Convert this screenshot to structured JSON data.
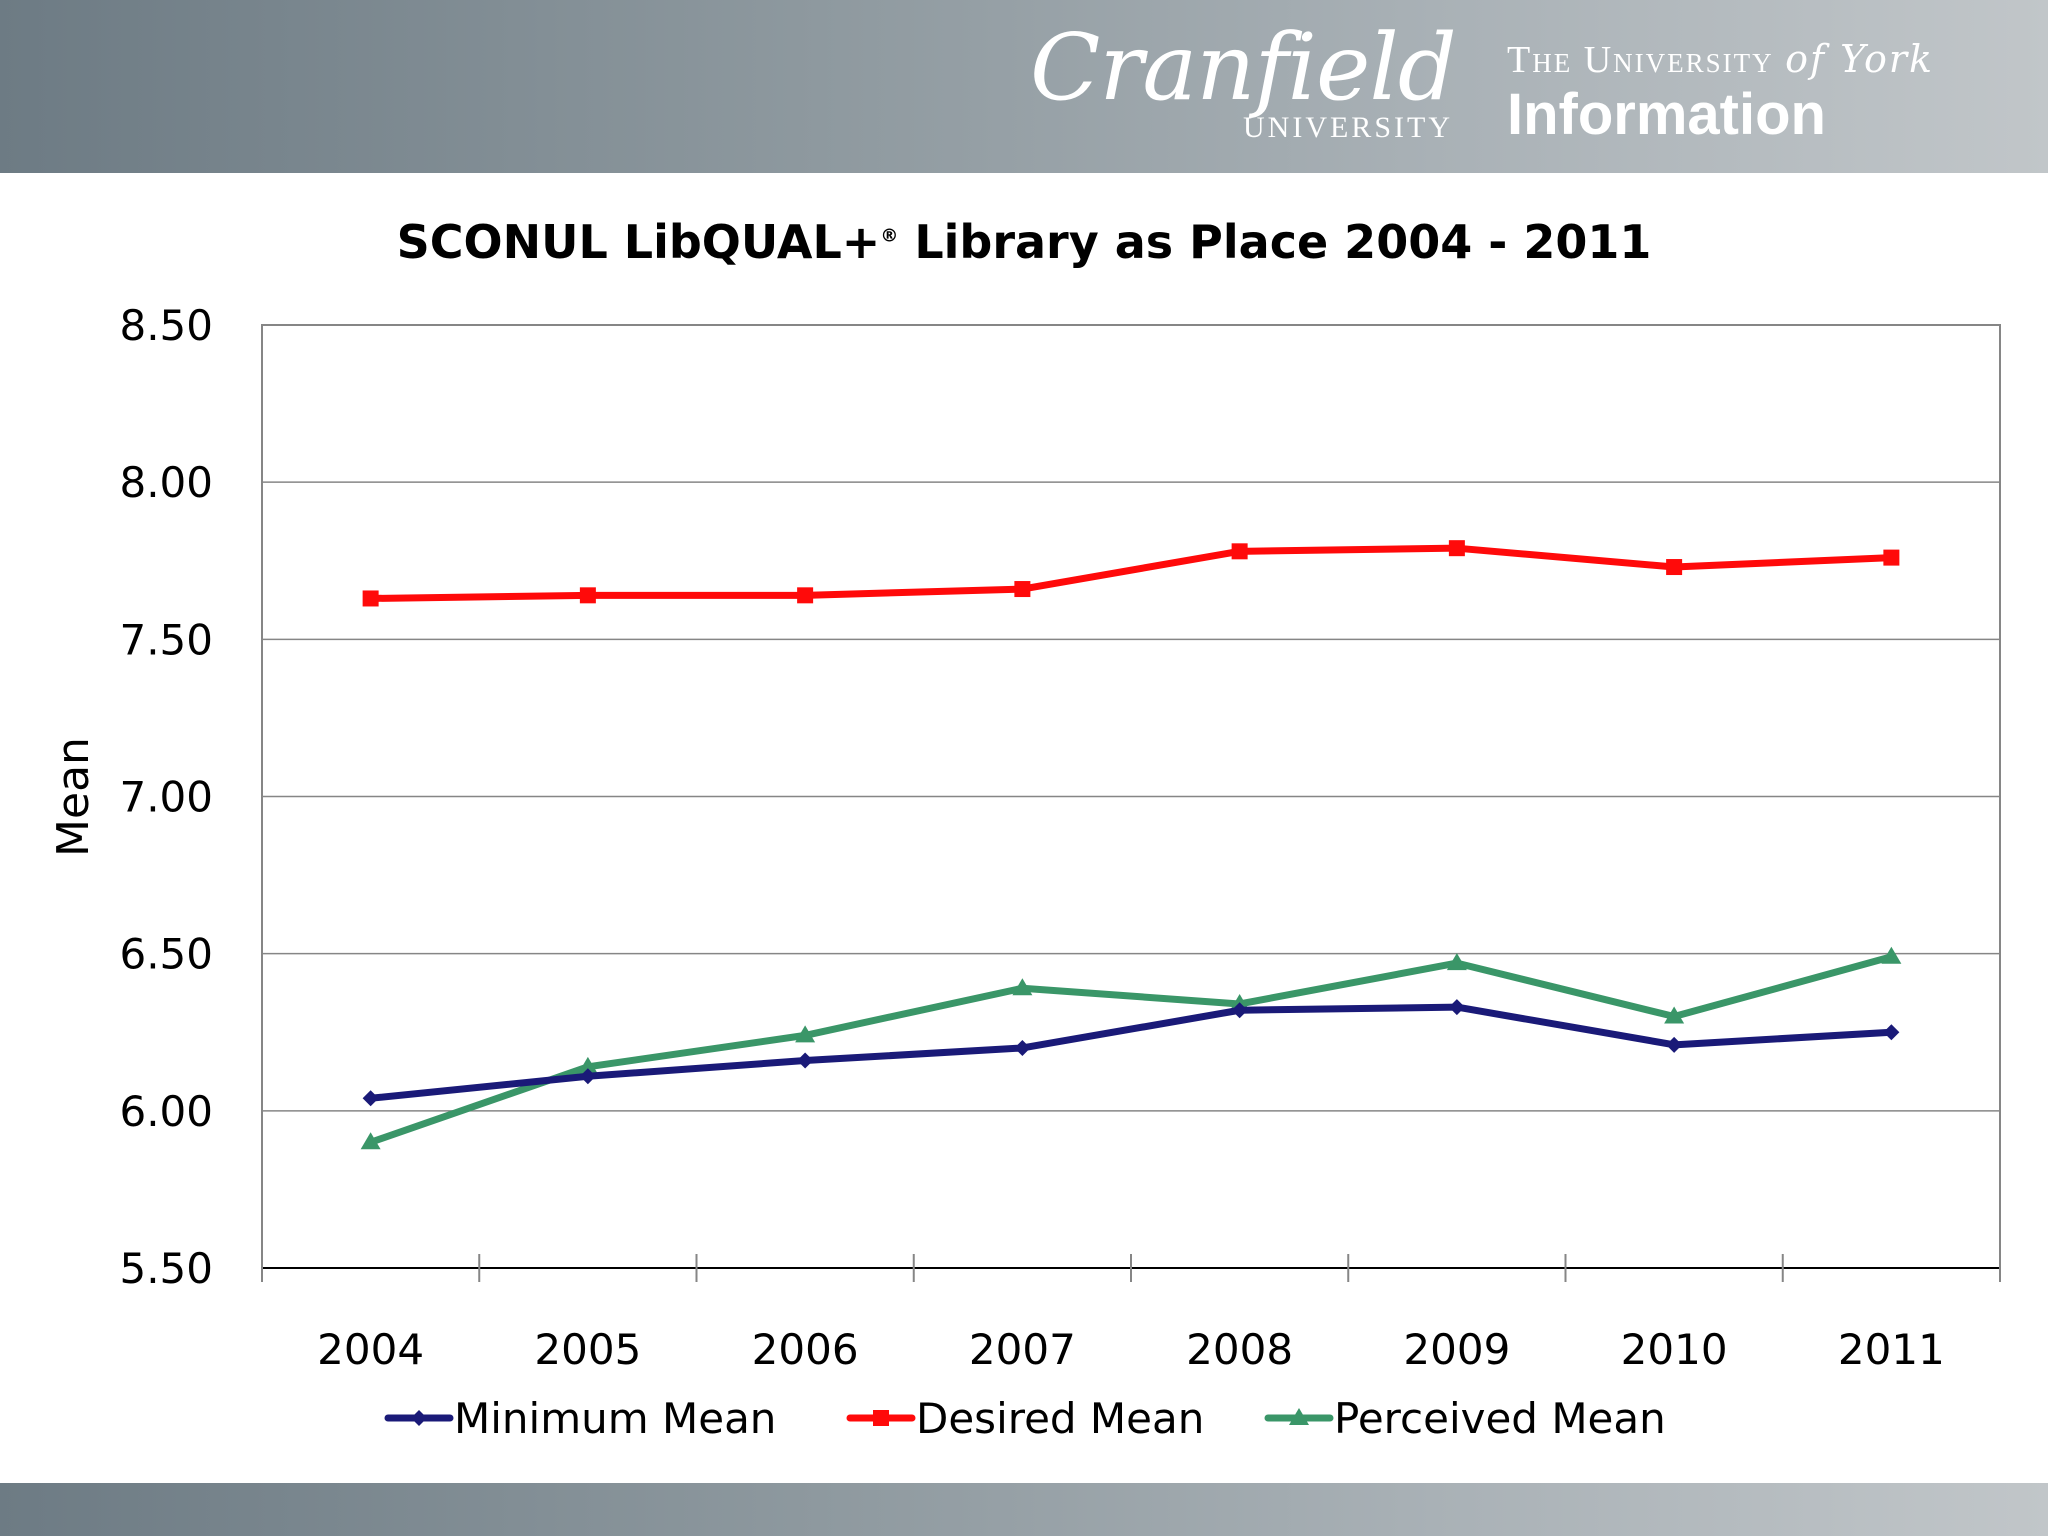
{
  "header": {
    "cranfield_logo": "Cranfield UNIVERSITY",
    "york_logo": "THE UNIVERSITY of York Information"
  },
  "chart_data": {
    "type": "line",
    "title": "SCONUL LibQUAL+",
    "title_mark": "®",
    "title_suffix": " Library as Place 2004 - 2011",
    "xlabel": "",
    "ylabel": "Mean",
    "categories": [
      "2004",
      "2005",
      "2006",
      "2007",
      "2008",
      "2009",
      "2010",
      "2011"
    ],
    "ylim": [
      5.5,
      8.5
    ],
    "yticks": [
      "5.50",
      "6.00",
      "6.50",
      "7.00",
      "7.50",
      "8.00",
      "8.50"
    ],
    "grid": "horizontal",
    "legend_position": "bottom",
    "series": [
      {
        "name": "Minimum Mean",
        "color": "#1a1a78",
        "marker": "diamond",
        "values": [
          6.04,
          6.11,
          6.16,
          6.2,
          6.32,
          6.33,
          6.21,
          6.25
        ]
      },
      {
        "name": "Desired Mean",
        "color": "#ff0a0a",
        "marker": "square",
        "values": [
          7.63,
          7.64,
          7.64,
          7.66,
          7.78,
          7.79,
          7.73,
          7.76
        ]
      },
      {
        "name": "Perceived Mean",
        "color": "#3a9668",
        "marker": "triangle",
        "values": [
          5.9,
          6.14,
          6.24,
          6.39,
          6.34,
          6.47,
          6.3,
          6.49
        ]
      }
    ]
  }
}
